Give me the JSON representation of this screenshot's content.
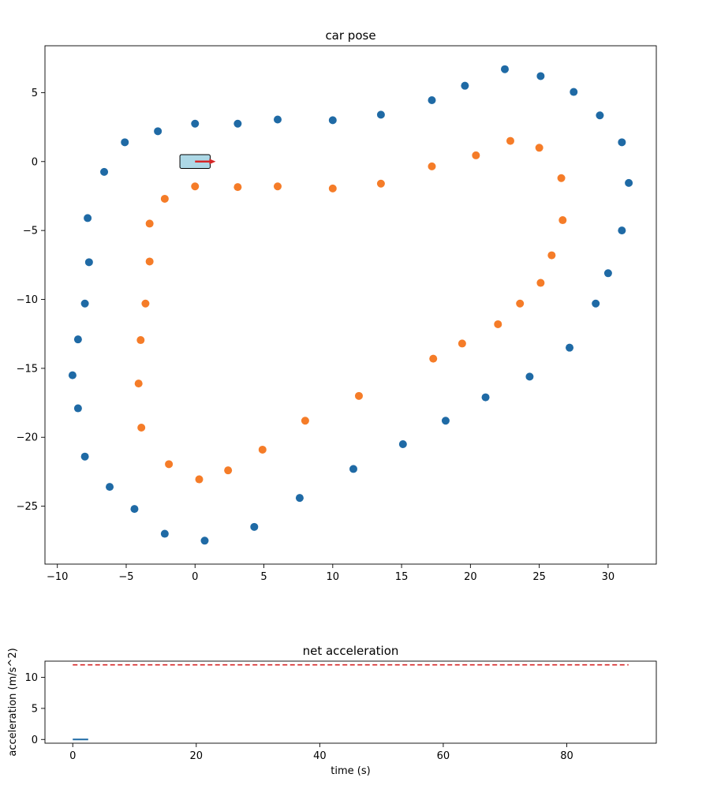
{
  "colors": {
    "outer": "#1f6aa5",
    "inner": "#f57c28",
    "car_fill": "#add8e6",
    "car_arrow": "#d62728",
    "limit_line": "#d62728",
    "accel_line": "#1f6aa5"
  },
  "chart_data": [
    {
      "type": "scatter",
      "title": "car pose",
      "xlabel": "",
      "ylabel": "",
      "xlim": [
        -10.9,
        33.5
      ],
      "ylim": [
        -29.2,
        8.4
      ],
      "xticks": [
        -10,
        -5,
        0,
        5,
        10,
        15,
        20,
        25,
        30
      ],
      "yticks": [
        5,
        0,
        -5,
        -10,
        -15,
        -20,
        -25
      ],
      "series": [
        {
          "points": [
            [
              0.0,
              2.75
            ],
            [
              3.1,
              2.75
            ],
            [
              6.0,
              3.05
            ],
            [
              10.0,
              3.0
            ],
            [
              13.5,
              3.4
            ],
            [
              17.2,
              4.45
            ],
            [
              19.6,
              5.5
            ],
            [
              22.5,
              6.7
            ],
            [
              25.1,
              6.2
            ],
            [
              27.5,
              5.05
            ],
            [
              29.4,
              3.35
            ],
            [
              31.0,
              1.4
            ],
            [
              31.5,
              -1.55
            ],
            [
              31.0,
              -5.0
            ],
            [
              30.0,
              -8.1
            ],
            [
              29.1,
              -10.3
            ],
            [
              27.2,
              -13.5
            ],
            [
              24.3,
              -15.6
            ],
            [
              21.1,
              -17.1
            ],
            [
              18.2,
              -18.8
            ],
            [
              15.1,
              -20.5
            ],
            [
              11.5,
              -22.3
            ],
            [
              7.6,
              -24.4
            ],
            [
              4.3,
              -26.5
            ],
            [
              0.7,
              -27.5
            ],
            [
              -2.2,
              -27.0
            ],
            [
              -4.4,
              -25.2
            ],
            [
              -6.2,
              -23.6
            ],
            [
              -8.0,
              -21.4
            ],
            [
              -8.5,
              -17.9
            ],
            [
              -8.9,
              -15.5
            ],
            [
              -8.5,
              -12.9
            ],
            [
              -8.0,
              -10.3
            ],
            [
              -7.7,
              -7.3
            ],
            [
              -7.8,
              -4.1
            ],
            [
              -6.6,
              -0.75
            ],
            [
              -5.1,
              1.4
            ],
            [
              -2.7,
              2.2
            ]
          ]
        },
        {
          "points": [
            [
              0.0,
              -1.8
            ],
            [
              3.1,
              -1.85
            ],
            [
              6.0,
              -1.8
            ],
            [
              10.0,
              -1.95
            ],
            [
              13.5,
              -1.6
            ],
            [
              17.2,
              -0.35
            ],
            [
              20.4,
              0.45
            ],
            [
              22.9,
              1.5
            ],
            [
              25.0,
              1.0
            ],
            [
              26.6,
              -1.2
            ],
            [
              26.7,
              -4.25
            ],
            [
              25.9,
              -6.8
            ],
            [
              25.1,
              -8.8
            ],
            [
              23.6,
              -10.3
            ],
            [
              22.0,
              -11.8
            ],
            [
              19.4,
              -13.2
            ],
            [
              17.3,
              -14.3
            ],
            [
              11.9,
              -17.0
            ],
            [
              8.0,
              -18.8
            ],
            [
              4.9,
              -20.9
            ],
            [
              2.4,
              -22.4
            ],
            [
              0.3,
              -23.05
            ],
            [
              -1.9,
              -21.95
            ],
            [
              -3.9,
              -19.3
            ],
            [
              -4.1,
              -16.1
            ],
            [
              -3.95,
              -12.95
            ],
            [
              -3.6,
              -10.3
            ],
            [
              -3.3,
              -7.25
            ],
            [
              -3.3,
              -4.5
            ],
            [
              -2.2,
              -2.7
            ]
          ]
        }
      ],
      "car": {
        "x": 0.0,
        "y": 0.0,
        "length": 2.2,
        "width": 1.0,
        "heading_deg": 0
      }
    },
    {
      "type": "line",
      "title": "net acceleration",
      "xlabel": "time (s)",
      "ylabel": "acceleration (m/s^2)",
      "xlim": [
        -4.5,
        94.5
      ],
      "ylim": [
        -0.6,
        12.6
      ],
      "xticks": [
        0,
        20,
        40,
        60,
        80
      ],
      "yticks": [
        10,
        5,
        0
      ],
      "series": [
        {
          "x": [
            0,
            2.5
          ],
          "y": [
            0,
            0
          ]
        }
      ],
      "limit_line": {
        "y": 12.0,
        "x_range": [
          0,
          90
        ]
      }
    }
  ]
}
